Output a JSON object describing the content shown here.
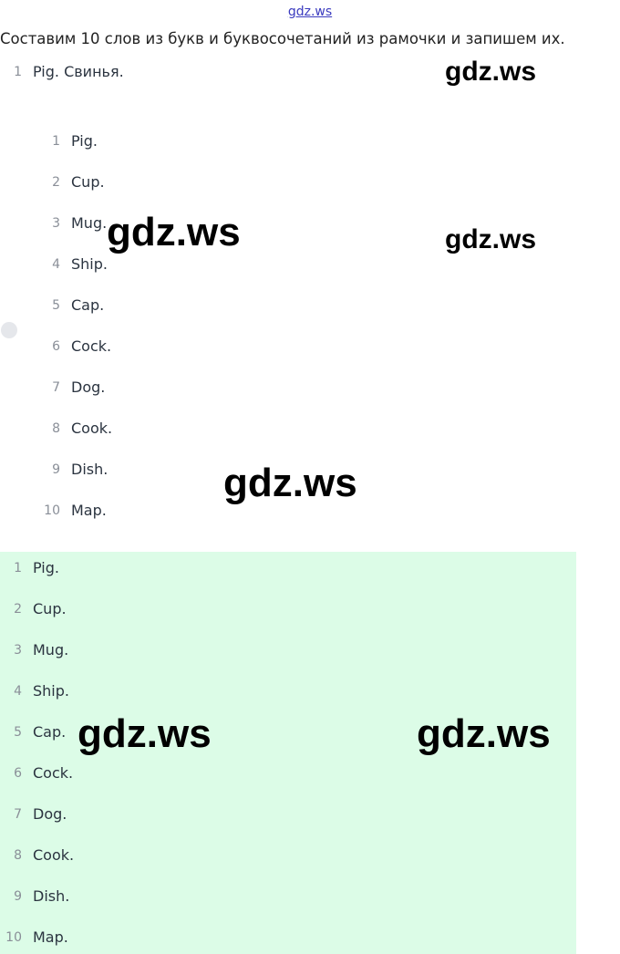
{
  "header": {
    "link": "gdz.ws"
  },
  "intro": "Составим 10 слов из букв и буквосочетаний из рамочки и запишем их.",
  "list": [
    {
      "number": 1,
      "text": "Pig. Свинья."
    }
  ],
  "nested_list": [
    {
      "number": 1,
      "text": "Pig."
    },
    {
      "number": 2,
      "text": "Cup."
    },
    {
      "number": 3,
      "text": "Mug."
    },
    {
      "number": 4,
      "text": "Ship."
    },
    {
      "number": 5,
      "text": "Cap."
    },
    {
      "number": 6,
      "text": "Cock."
    },
    {
      "number": 7,
      "text": "Dog."
    },
    {
      "number": 8,
      "text": "Cook."
    },
    {
      "number": 9,
      "text": "Dish."
    },
    {
      "number": 10,
      "text": "Map."
    }
  ],
  "answer_list": [
    {
      "number": 1,
      "text": "Pig."
    },
    {
      "number": 2,
      "text": "Cup."
    },
    {
      "number": 3,
      "text": "Mug."
    },
    {
      "number": 4,
      "text": "Ship."
    },
    {
      "number": 5,
      "text": "Cap."
    },
    {
      "number": 6,
      "text": "Cock."
    },
    {
      "number": 7,
      "text": "Dog."
    },
    {
      "number": 8,
      "text": "Cook."
    },
    {
      "number": 9,
      "text": "Dish."
    },
    {
      "number": 10,
      "text": "Map."
    }
  ],
  "watermarks": [
    "gdz.ws",
    "gdz.ws",
    "gdz.ws",
    "gdz.ws",
    "gdz.ws",
    "gdz.ws"
  ]
}
